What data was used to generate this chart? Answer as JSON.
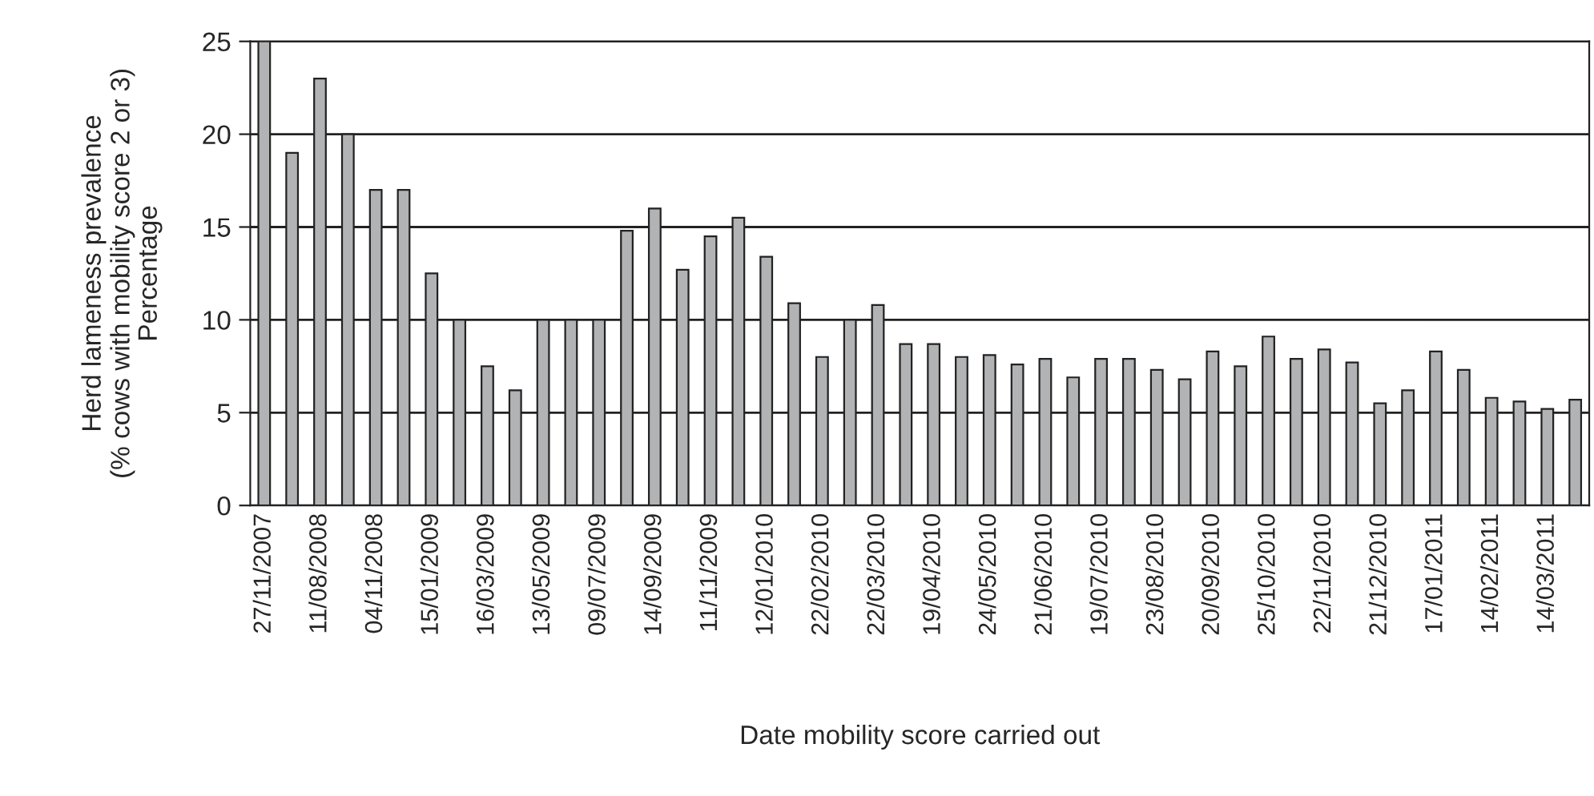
{
  "chart_data": {
    "type": "bar",
    "xlabel": "Date mobility score carried out",
    "ylabel": "Herd lameness prevalence\n(% cows with mobility score 2 or 3)",
    "annotations": [
      "Percentage"
    ],
    "categories": [
      "27/11/2007",
      null,
      "11/08/2008",
      null,
      "04/11/2008",
      null,
      "15/01/2009",
      null,
      "16/03/2009",
      null,
      "13/05/2009",
      null,
      "09/07/2009",
      null,
      "14/09/2009",
      null,
      "11/11/2009",
      null,
      "12/01/2010",
      null,
      "22/02/2010",
      null,
      "22/03/2010",
      null,
      "19/04/2010",
      null,
      "24/05/2010",
      null,
      "21/06/2010",
      null,
      "19/07/2010",
      null,
      "23/08/2010",
      null,
      "20/09/2010",
      null,
      "25/10/2010",
      null,
      "22/11/2010",
      null,
      "21/12/2010",
      null,
      "17/01/2011",
      null,
      "14/02/2011",
      null,
      "14/03/2011",
      null
    ],
    "values": [
      25,
      19,
      23,
      20,
      17,
      17,
      12.5,
      10,
      7.5,
      6.2,
      10,
      10,
      10,
      14.8,
      16,
      12.7,
      14.5,
      15.5,
      13.4,
      10.9,
      8,
      10,
      10.8,
      8.7,
      8.7,
      8,
      8.1,
      7.6,
      7.9,
      6.9,
      7.9,
      7.9,
      7.3,
      6.8,
      8.3,
      7.5,
      9.1,
      7.9,
      8.4,
      7.7,
      5.5,
      6.2,
      8.3,
      7.3,
      5.8,
      5.6,
      5.2,
      5.7
    ],
    "color": "#b1b3b5",
    "ylim": [
      0,
      25
    ],
    "yticks": [
      0,
      5,
      10,
      15,
      20,
      25
    ],
    "grid": "y"
  }
}
